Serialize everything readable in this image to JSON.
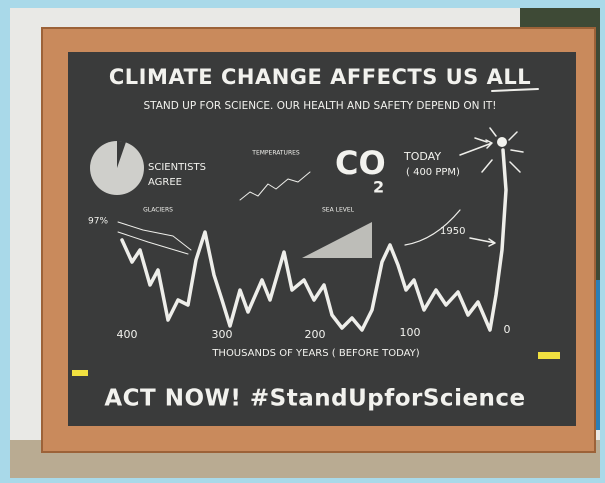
{
  "title": "CLIMATE CHANGE AFFECTS US ALL",
  "subtitle": "STAND UP FOR SCIENCE. OUR HEALTH AND SAFETY DEPEND ON IT!",
  "pie": {
    "label_line1": "SCIENTISTS",
    "label_line2": "AGREE",
    "percent": "97%"
  },
  "co2": {
    "text": "CO",
    "subscript": "2",
    "today": "TODAY",
    "ppm": "( 400 PPM)",
    "year": "1950"
  },
  "small_labels": {
    "temperatures": "TEMPERATURES",
    "glaciers": "GLACIERS",
    "sea_level": "SEA LEVEL"
  },
  "axis": {
    "ticks": [
      "400",
      "300",
      "200",
      "100",
      "0"
    ],
    "label": "THOUSANDS OF YEARS ( BEFORE TODAY)"
  },
  "footer": "ACT NOW! #StandUpforScience"
}
